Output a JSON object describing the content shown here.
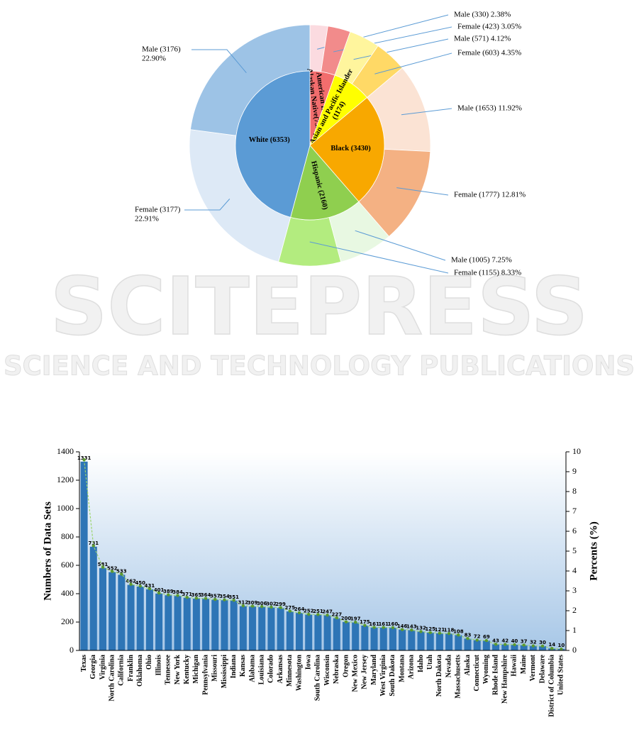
{
  "watermark": {
    "title": "SCITEPRESS",
    "subtitle": "SCIENCE AND TECHNOLOGY PUBLICATIONS"
  },
  "chart_data": [
    {
      "type": "sunburst",
      "values": [
        753,
        1174,
        3430,
        2160,
        6353
      ],
      "value_labels": [
        [
          "American Indian",
          "Alaskan Native(753)"
        ],
        [
          "Asian and Pacific Islander",
          "(1174)"
        ],
        [
          "Black (3430)"
        ],
        [
          "Hispanic (2160)"
        ],
        [
          "White (6353)"
        ]
      ],
      "colors": [
        "#f26d6d",
        "#ffff00",
        "#f8a800",
        "#8fcf4f",
        "#5b9bd5"
      ],
      "outer": {
        "values": [
          330,
          423,
          571,
          603,
          1653,
          1777,
          1005,
          1155,
          3177,
          3176
        ],
        "value_labels": [
          [
            "Male (330) 2.38%"
          ],
          [
            "Female (423) 3.05%"
          ],
          [
            "Male (571) 4.12%"
          ],
          [
            "Female (603) 4.35%"
          ],
          [
            "Male (1653) 11.92%"
          ],
          [
            "Female (1777) 12.81%"
          ],
          [
            "Male (1005) 7.25%"
          ],
          [
            "Female (1155) 8.33%"
          ],
          [
            "Female (3177)",
            "22.91%"
          ],
          [
            "Male (3176)",
            "22.90%"
          ]
        ],
        "colors": [
          "#fbdbe0",
          "#f28b8b",
          "#fff59d",
          "#ffd966",
          "#fbe3d4",
          "#f4b183",
          "#e8f8e2",
          "#b3ec7f",
          "#dde9f6",
          "#9dc3e6"
        ]
      }
    },
    {
      "type": "bar",
      "categories": [
        "Texas",
        "Georgia",
        "Virginia",
        "North Carolina",
        "California",
        "Franklin",
        "Oklahoma",
        "Ohio",
        "Illinois",
        "Tennessee",
        "New York",
        "Kentucky",
        "Michigan",
        "Pennsylvania",
        "Missouri",
        "Mississippi",
        "Indiana",
        "Kansas",
        "Alabama",
        "Louisiana",
        "Colorado",
        "Arkansas",
        "Minnesota",
        "Washington",
        "Iowa",
        "South Carolina",
        "Wisconsin",
        "Nebraska",
        "Oregon",
        "New Mexico",
        "New Jersey",
        "Maryland",
        "West Virginia",
        "South Dakota",
        "Montana",
        "Arizona",
        "Idaho",
        "Utah",
        "North Dakota",
        "Nevada",
        "Massachusetts",
        "Alaska",
        "Connecticut",
        "Wyoming",
        "Rhode Island",
        "New Hampshire",
        "Hawaii",
        "Maine",
        "Vermont",
        "Delaware",
        "District of Columbia",
        "United States"
      ],
      "series": [
        {
          "color": "#2e75b6",
          "values": [
            1331,
            731,
            581,
            552,
            533,
            462,
            450,
            431,
            401,
            389,
            384,
            371,
            365,
            364,
            357,
            354,
            351,
            312,
            309,
            306,
            302,
            299,
            275,
            264,
            252,
            251,
            247,
            227,
            200,
            197,
            175,
            161,
            161,
            160,
            146,
            143,
            132,
            125,
            121,
            118,
            108,
            83,
            72,
            69,
            43,
            42,
            40,
            37,
            32,
            30,
            14,
            10
          ]
        },
        {
          "type": "line",
          "axis": "y2",
          "color": "#9bd46b",
          "marker_color": "#5e9a2f",
          "values": [
            9.6,
            5.27,
            4.19,
            3.98,
            3.84,
            3.33,
            3.24,
            3.11,
            2.89,
            2.8,
            2.77,
            2.67,
            2.63,
            2.62,
            2.57,
            2.55,
            2.53,
            2.25,
            2.23,
            2.21,
            2.18,
            2.16,
            1.98,
            1.9,
            1.82,
            1.81,
            1.78,
            1.64,
            1.44,
            1.42,
            1.26,
            1.16,
            1.16,
            1.15,
            1.05,
            1.03,
            0.95,
            0.9,
            0.87,
            0.85,
            0.78,
            0.6,
            0.52,
            0.5,
            0.31,
            0.3,
            0.29,
            0.27,
            0.23,
            0.22,
            0.1,
            0.07
          ]
        }
      ],
      "ylabel": "Numbers of Data Sets",
      "y2label": "Percents (%)",
      "ylim": [
        0,
        1400
      ],
      "yticks": [
        0,
        200,
        400,
        600,
        800,
        1000,
        1200,
        1400
      ],
      "y2lim": [
        0,
        10
      ],
      "y2ticks": [
        0,
        1,
        2,
        3,
        4,
        5,
        6,
        7,
        8,
        9,
        10
      ]
    }
  ]
}
